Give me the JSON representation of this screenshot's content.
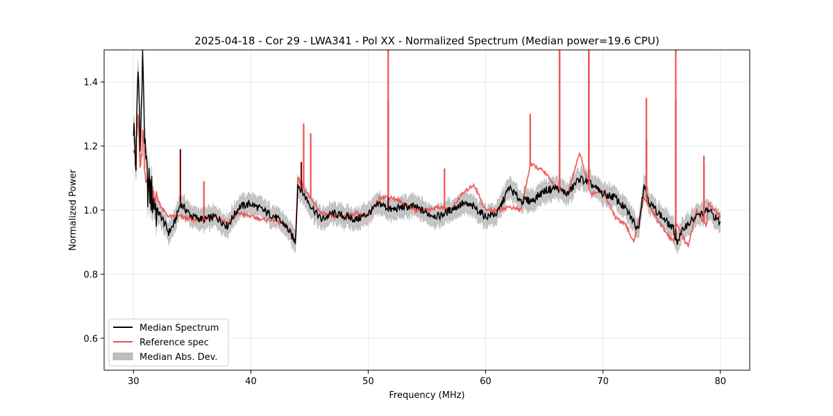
{
  "chart_data": {
    "type": "line",
    "title": "2025-04-18 - Cor 29 - LWA341 - Pol XX - Normalized Spectrum (Median power=19.6 CPU)",
    "xlabel": "Frequency (MHz)",
    "ylabel": "Normalized Power",
    "xlim": [
      27.5,
      82.5
    ],
    "ylim": [
      0.5,
      1.5
    ],
    "xticks": [
      30,
      40,
      50,
      60,
      70,
      80
    ],
    "yticks": [
      0.6,
      0.8,
      1.0,
      1.2,
      1.4
    ],
    "xtick_labels": [
      "30",
      "40",
      "50",
      "60",
      "70",
      "80"
    ],
    "ytick_labels": [
      "0.6",
      "0.8",
      "1.0",
      "1.2",
      "1.4"
    ],
    "grid": true,
    "legend_position": "lower-left",
    "legend": [
      {
        "label": "Median Spectrum",
        "kind": "line",
        "color": "#000000"
      },
      {
        "label": "Reference spec",
        "kind": "line",
        "color": "#f05050"
      },
      {
        "label": "Median Abs. Dev.",
        "kind": "band",
        "color": "#bdbdbd"
      }
    ],
    "series": [
      {
        "name": "Median Spectrum",
        "color": "#000000",
        "x": [
          30.0,
          30.2,
          30.4,
          30.6,
          30.8,
          31.0,
          31.2,
          31.5,
          32.0,
          32.5,
          33.0,
          33.5,
          34.0,
          34.5,
          35.0,
          36.0,
          37.0,
          38.0,
          39.0,
          40.0,
          41.0,
          42.0,
          43.0,
          43.8,
          44.0,
          45.0,
          46.0,
          47.0,
          48.0,
          49.0,
          50.0,
          51.0,
          52.0,
          53.0,
          54.0,
          55.0,
          56.0,
          57.0,
          58.0,
          59.0,
          60.0,
          61.0,
          62.0,
          63.0,
          64.0,
          65.0,
          66.0,
          67.0,
          68.0,
          69.0,
          70.0,
          71.0,
          72.0,
          73.0,
          73.5,
          74.0,
          75.0,
          76.0,
          76.3,
          77.0,
          78.0,
          79.0,
          80.0
        ],
        "y": [
          1.28,
          1.12,
          1.45,
          1.2,
          1.5,
          1.15,
          1.08,
          1.05,
          1.0,
          0.97,
          0.93,
          0.96,
          1.02,
          1.0,
          0.98,
          0.97,
          0.98,
          0.95,
          1.01,
          1.02,
          1.0,
          0.98,
          0.95,
          0.9,
          1.08,
          1.02,
          0.97,
          0.99,
          0.98,
          0.97,
          0.99,
          1.02,
          1.0,
          1.01,
          1.01,
          0.99,
          0.98,
          1.0,
          1.02,
          1.01,
          0.98,
          0.99,
          1.07,
          1.03,
          1.03,
          1.06,
          1.07,
          1.05,
          1.1,
          1.08,
          1.05,
          1.04,
          1.0,
          0.94,
          1.08,
          1.02,
          0.98,
          0.94,
          0.9,
          0.95,
          0.98,
          1.0,
          0.96
        ]
      },
      {
        "name": "Reference spec",
        "color": "#f05050",
        "x": [
          30.0,
          30.2,
          30.4,
          30.6,
          30.8,
          31.0,
          31.2,
          31.5,
          32.0,
          32.5,
          33.0,
          34.0,
          35.0,
          36.0,
          37.0,
          38.0,
          39.0,
          40.0,
          41.0,
          42.0,
          43.0,
          43.8,
          44.0,
          45.0,
          46.0,
          47.0,
          48.0,
          49.0,
          50.0,
          51.0,
          52.0,
          53.0,
          54.0,
          55.0,
          56.0,
          57.0,
          58.0,
          59.0,
          60.0,
          61.0,
          62.0,
          63.0,
          63.8,
          64.0,
          65.0,
          66.0,
          67.0,
          68.0,
          69.0,
          70.0,
          71.0,
          72.0,
          72.6,
          73.5,
          74.0,
          75.0,
          76.0,
          76.3,
          77.0,
          77.3,
          78.0,
          78.8,
          79.0,
          80.0
        ],
        "y": [
          1.22,
          1.18,
          1.3,
          1.1,
          1.25,
          1.08,
          1.1,
          1.06,
          1.04,
          1.0,
          0.98,
          0.98,
          0.97,
          0.97,
          0.98,
          0.96,
          0.99,
          0.98,
          0.97,
          0.97,
          0.95,
          0.9,
          1.1,
          1.04,
          0.99,
          0.98,
          0.98,
          0.99,
          0.98,
          1.04,
          1.04,
          1.02,
          1.0,
          1.0,
          1.01,
          1.0,
          1.05,
          1.08,
          1.0,
          1.0,
          1.01,
          1.0,
          1.14,
          1.14,
          1.12,
          1.07,
          1.05,
          1.18,
          1.05,
          1.06,
          0.98,
          0.95,
          0.9,
          1.04,
          1.01,
          0.95,
          0.9,
          0.96,
          0.9,
          0.89,
          1.0,
          0.95,
          1.02,
          0.98
        ]
      }
    ],
    "spikes": [
      {
        "series": "Median Spectrum",
        "x": 34.0,
        "y": 1.19
      },
      {
        "series": "Median Spectrum",
        "x": 44.3,
        "y": 1.15
      },
      {
        "series": "Median Spectrum",
        "x": 51.7,
        "y": 1.34
      },
      {
        "series": "Median Spectrum",
        "x": 66.3,
        "y": 1.5
      },
      {
        "series": "Median Spectrum",
        "x": 68.8,
        "y": 1.5
      },
      {
        "series": "Median Spectrum",
        "x": 73.7,
        "y": 1.22
      },
      {
        "series": "Median Spectrum",
        "x": 76.2,
        "y": 1.34
      },
      {
        "series": "Median Spectrum",
        "x": 78.6,
        "y": 1.14
      },
      {
        "series": "Reference spec",
        "x": 36.0,
        "y": 1.09
      },
      {
        "series": "Reference spec",
        "x": 44.5,
        "y": 1.27
      },
      {
        "series": "Reference spec",
        "x": 45.1,
        "y": 1.24
      },
      {
        "series": "Reference spec",
        "x": 51.7,
        "y": 1.5
      },
      {
        "series": "Reference spec",
        "x": 56.5,
        "y": 1.13
      },
      {
        "series": "Reference spec",
        "x": 63.8,
        "y": 1.3
      },
      {
        "series": "Reference spec",
        "x": 66.3,
        "y": 1.5
      },
      {
        "series": "Reference spec",
        "x": 68.8,
        "y": 1.5
      },
      {
        "series": "Reference spec",
        "x": 73.7,
        "y": 1.35
      },
      {
        "series": "Reference spec",
        "x": 76.2,
        "y": 1.5
      },
      {
        "series": "Reference spec",
        "x": 78.6,
        "y": 1.17
      }
    ],
    "band": {
      "name": "Median Abs. Dev.",
      "color": "#bdbdbd",
      "half_width": 0.025
    }
  }
}
